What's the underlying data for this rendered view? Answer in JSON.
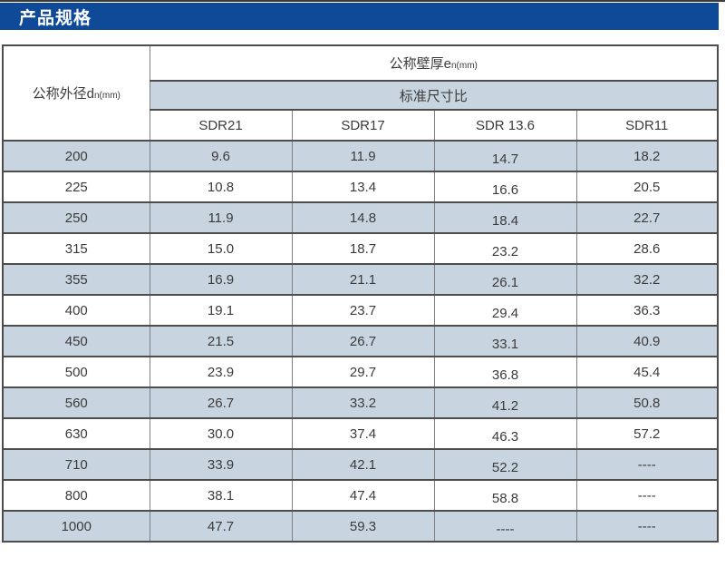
{
  "page": {
    "banner_title": "产品规格"
  },
  "colors": {
    "banner_blue": "#0e4a97",
    "row_alt_blue": "#c8d5e0",
    "border_dark": "#4d4d4d",
    "border_light": "#7f7f7f",
    "text": "#3b3b3b",
    "banner_text": "#ffffff"
  },
  "table": {
    "header": {
      "outer_diameter_label": "公称外径d",
      "outer_diameter_sub": "n(mm)",
      "wall_thickness_label": "公称壁厚e",
      "wall_thickness_sub": "n(mm)",
      "sdr_group_label": "标准尺寸比",
      "sdr_columns": [
        "SDR21",
        "SDR17",
        "SDR 13.6",
        "SDR11"
      ]
    },
    "rows": [
      {
        "dn": "200",
        "values": [
          "9.6",
          "11.9",
          "14.7",
          "18.2"
        ]
      },
      {
        "dn": "225",
        "values": [
          "10.8",
          "13.4",
          "16.6",
          "20.5"
        ]
      },
      {
        "dn": "250",
        "values": [
          "11.9",
          "14.8",
          "18.4",
          "22.7"
        ]
      },
      {
        "dn": "315",
        "values": [
          "15.0",
          "18.7",
          "23.2",
          "28.6"
        ]
      },
      {
        "dn": "355",
        "values": [
          "16.9",
          "21.1",
          "26.1",
          "32.2"
        ]
      },
      {
        "dn": "400",
        "values": [
          "19.1",
          "23.7",
          "29.4",
          "36.3"
        ]
      },
      {
        "dn": "450",
        "values": [
          "21.5",
          "26.7",
          "33.1",
          "40.9"
        ]
      },
      {
        "dn": "500",
        "values": [
          "23.9",
          "29.7",
          "36.8",
          "45.4"
        ]
      },
      {
        "dn": "560",
        "values": [
          "26.7",
          "33.2",
          "41.2",
          "50.8"
        ]
      },
      {
        "dn": "630",
        "values": [
          "30.0",
          "37.4",
          "46.3",
          "57.2"
        ]
      },
      {
        "dn": "710",
        "values": [
          "33.9",
          "42.1",
          "52.2",
          "----"
        ]
      },
      {
        "dn": "800",
        "values": [
          "38.1",
          "47.4",
          "58.8",
          "----"
        ]
      },
      {
        "dn": "1000",
        "values": [
          "47.7",
          "59.3",
          "----",
          "----"
        ]
      }
    ]
  }
}
